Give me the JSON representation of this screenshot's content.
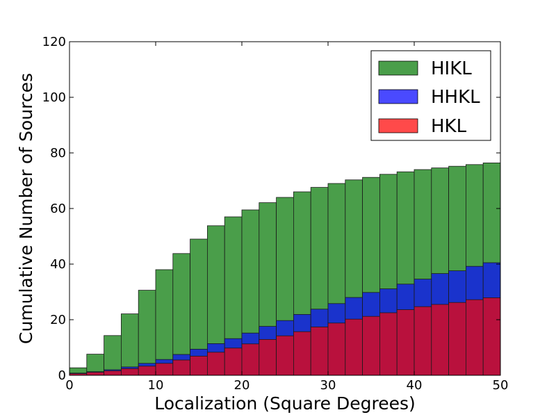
{
  "chart_data": {
    "type": "bar",
    "subtype": "stacked-histogram-overlay",
    "title": "",
    "xlabel": "Localization (Square Degrees)",
    "ylabel": "Cumulative Number of Sources",
    "xlim": [
      0,
      50
    ],
    "ylim": [
      0,
      120
    ],
    "xticks": [
      0,
      10,
      20,
      30,
      40,
      50
    ],
    "yticks": [
      0,
      20,
      40,
      60,
      80,
      100,
      120
    ],
    "grid": false,
    "legend_position": "top-right",
    "bin_edges": [
      0,
      2,
      4,
      6,
      8,
      10,
      12,
      14,
      16,
      18,
      20,
      22,
      24,
      26,
      28,
      30,
      32,
      34,
      36,
      38,
      40,
      42,
      44,
      46,
      48,
      50
    ],
    "series": [
      {
        "name": "HIKL",
        "color": "#4a9e4a",
        "values": [
          2.7,
          7.6,
          14.3,
          22.1,
          30.6,
          38.0,
          43.8,
          49.0,
          53.8,
          57.0,
          59.5,
          62.1,
          64.0,
          66.0,
          67.6,
          69.0,
          70.3,
          71.2,
          72.3,
          73.2,
          74.0,
          74.6,
          75.2,
          75.8,
          76.4
        ]
      },
      {
        "name": "HHKL",
        "color": "#1a33cc",
        "values": [
          0.8,
          1.3,
          2.0,
          3.0,
          4.3,
          5.7,
          7.5,
          9.4,
          11.4,
          13.2,
          15.2,
          17.6,
          19.7,
          21.9,
          23.8,
          25.8,
          28.0,
          29.8,
          31.1,
          32.8,
          34.6,
          36.6,
          37.6,
          39.2,
          40.5
        ]
      },
      {
        "name": "HKL",
        "color": "#b9113d",
        "values": [
          0.6,
          1.1,
          1.6,
          2.4,
          3.3,
          4.3,
          5.5,
          6.9,
          8.3,
          9.8,
          11.3,
          12.9,
          14.2,
          15.7,
          17.4,
          18.8,
          20.2,
          21.2,
          22.5,
          23.6,
          24.7,
          25.5,
          26.2,
          27.2,
          27.9
        ]
      }
    ],
    "legend": [
      {
        "label": "HIKL",
        "swatch": "#4a9e4a"
      },
      {
        "label": "HHKL",
        "swatch": "#4a4aff"
      },
      {
        "label": "HKL",
        "swatch": "#ff4a4a"
      }
    ]
  }
}
